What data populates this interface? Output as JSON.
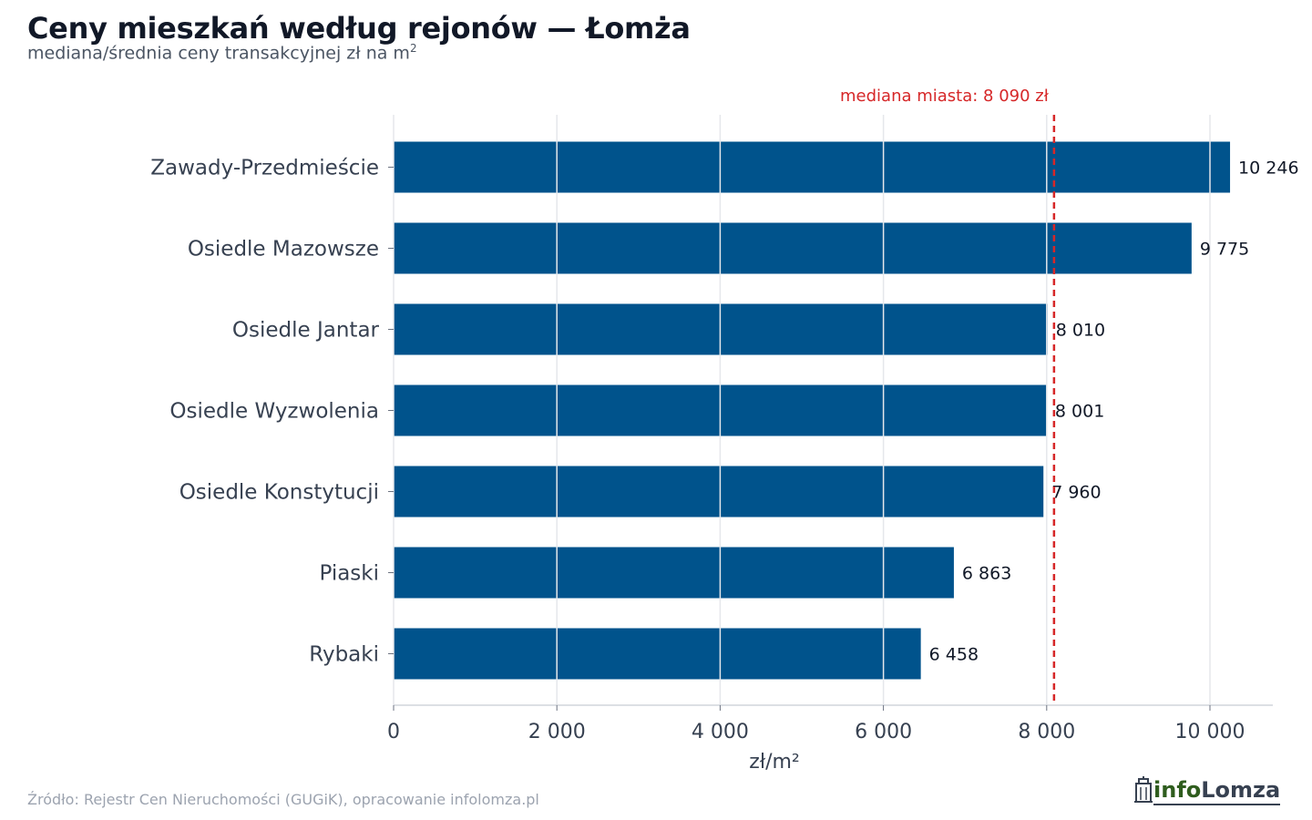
{
  "title": "Ceny mieszkań według rejonów — Łomża",
  "subtitle": "mediana/średnia ceny transakcyjnej zł na m",
  "subtitle_sup": "2",
  "source": "Źródło: Rejestr Cen Nieruchomości (GUGiK), opracowanie infolomza.pl",
  "logo": {
    "part1": "info",
    "part2": "Lomza",
    "icon": "building-icon"
  },
  "colors": {
    "bar": "#00538c",
    "median_line": "#d62728",
    "grid": "#e5e7eb"
  },
  "chart_data": {
    "type": "bar",
    "orientation": "horizontal",
    "categories": [
      "Zawady-Przedmieście",
      "Osiedle Mazowsze",
      "Osiedle Jantar",
      "Osiedle Wyzwolenia",
      "Osiedle Konstytucji",
      "Piaski",
      "Rybaki"
    ],
    "values": [
      10246,
      9775,
      8010,
      8001,
      7960,
      6863,
      6458
    ],
    "value_labels": [
      "10 246",
      "9 775",
      "8 010",
      "8 001",
      "7 960",
      "6 863",
      "6 458"
    ],
    "xlabel": "zł/m²",
    "xlim": [
      0,
      10770
    ],
    "xticks": [
      0,
      2000,
      4000,
      6000,
      8000,
      10000
    ],
    "xtick_labels": [
      "0",
      "2 000",
      "4 000",
      "6 000",
      "8 000",
      "10 000"
    ],
    "grid": true,
    "reference_line": {
      "value": 8090,
      "label": "mediana miasta: 8 090 zł"
    }
  }
}
